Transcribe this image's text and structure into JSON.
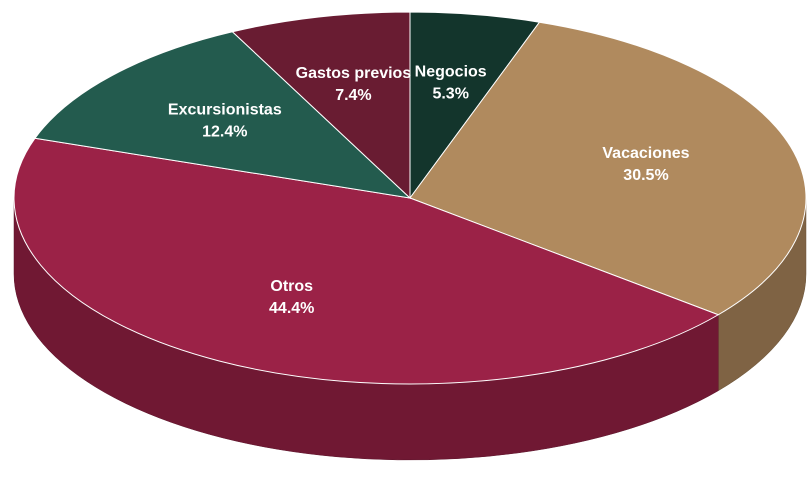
{
  "chart_data": {
    "type": "pie",
    "categories": [
      "Negocios",
      "Vacaciones",
      "Otros",
      "Excursionistas",
      "Gastos previos"
    ],
    "values": [
      5.3,
      30.5,
      44.4,
      12.4,
      7.4
    ],
    "value_labels": [
      "5.3%",
      "30.5%",
      "44.4%",
      "12.4%",
      "7.4%"
    ],
    "colors": [
      "#13352c",
      "#b08a5e",
      "#9b2247",
      "#235b4e",
      "#691c32"
    ]
  }
}
